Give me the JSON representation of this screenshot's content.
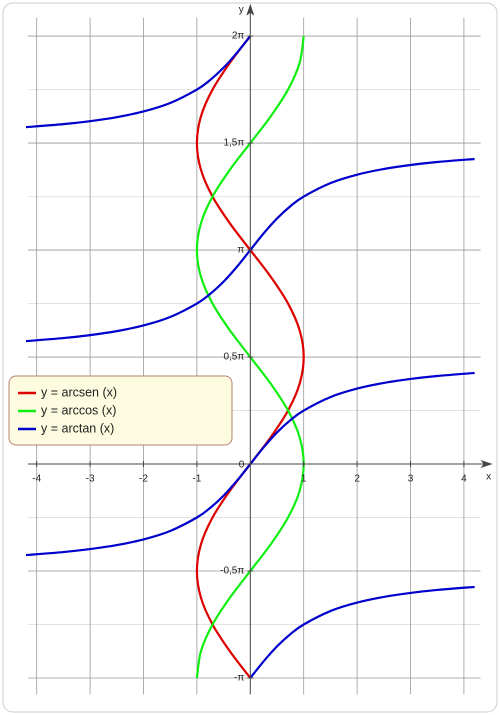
{
  "chart_data": {
    "type": "line",
    "x_label": "x",
    "y_label": "y",
    "xlim": [
      -4.35,
      4.5
    ],
    "ylim": [
      -3.5,
      6.7
    ],
    "xticks": [
      -4,
      -3,
      -2,
      -1,
      1,
      2,
      3,
      4
    ],
    "yticks": [
      {
        "value": -3.1416,
        "label": "-π"
      },
      {
        "value": -1.5708,
        "label": "-0,5π"
      },
      0,
      {
        "value": 1.5708,
        "label": "0,5π"
      },
      {
        "value": 3.1416,
        "label": "π"
      },
      {
        "value": 4.7124,
        "label": "1,5π"
      },
      {
        "value": 6.2832,
        "label": "2π"
      }
    ],
    "y_minor_ticks": [
      -2.3562,
      -0.7854,
      0.7854,
      2.3562,
      3.927,
      5.4978
    ],
    "grid": true,
    "legend": "left",
    "series": [
      {
        "name": "y = arcsen (x)",
        "color": "#dd0000",
        "x": [
          0,
          -0.3827,
          -0.7071,
          -0.9239,
          -1,
          -0.9239,
          -0.7071,
          -0.3827,
          0,
          0.3827,
          0.7071,
          0.9239,
          1,
          0.9239,
          0.7071,
          0.3827,
          0,
          -0.3827,
          -0.7071,
          -0.9239,
          -1,
          -0.9239,
          -0.7071,
          -0.3827,
          0
        ],
        "values": [
          -3.1416,
          -2.7489,
          -2.3562,
          -1.9635,
          -1.5708,
          -1.1781,
          -0.7854,
          -0.3927,
          0,
          0.3927,
          0.7854,
          1.1781,
          1.5708,
          1.9635,
          2.3562,
          2.7489,
          3.1416,
          3.5343,
          3.927,
          4.3197,
          4.7124,
          5.1051,
          5.4978,
          5.8905,
          6.2832
        ]
      },
      {
        "name": "y = arccos (x)",
        "color": "#11ee11",
        "x": [
          -1,
          -0.9239,
          -0.7071,
          -0.3827,
          0,
          0.3827,
          0.7071,
          0.9239,
          1,
          0.9239,
          0.7071,
          0.3827,
          0,
          -0.3827,
          -0.7071,
          -0.9239,
          -1,
          -0.9239,
          -0.7071,
          -0.3827,
          0,
          0.3827,
          0.7071,
          0.9239,
          1
        ],
        "values": [
          -3.1416,
          -2.7489,
          -2.3562,
          -1.9635,
          -1.5708,
          -1.1781,
          -0.7854,
          -0.3927,
          0,
          0.3927,
          0.7854,
          1.1781,
          1.5708,
          1.9635,
          2.3562,
          2.7489,
          3.1416,
          3.5343,
          3.927,
          4.3197,
          4.7124,
          5.1051,
          5.4978,
          5.8905,
          6.2832
        ]
      },
      {
        "name": "y = arctan (x)",
        "color": "#0000cc",
        "x": [
          -4.2,
          -3.5,
          -3,
          -2.5,
          -2,
          -1.5,
          -1,
          -0.75,
          -0.5,
          -0.25,
          0,
          null,
          -4.2,
          -3.5,
          -3,
          -2.5,
          -2,
          -1.5,
          -1,
          -0.75,
          -0.5,
          -0.25,
          0,
          0.25,
          0.5,
          0.75,
          1,
          1.5,
          2,
          2.5,
          3,
          3.5,
          4.2,
          null,
          -4.2,
          -3.5,
          -3,
          -2.5,
          -2,
          -1.5,
          -1,
          -0.75,
          -0.5,
          -0.25,
          0,
          0.25,
          0.5,
          0.75,
          1,
          1.5,
          2,
          2.5,
          3,
          3.5,
          4.2,
          null,
          0,
          0.25,
          0.5,
          0.75,
          1,
          1.5,
          2,
          2.5,
          3,
          3.5,
          4.2
        ],
        "values": [
          4.9461,
          4.9907,
          5.0342,
          5.0929,
          5.1761,
          5.3004,
          5.4978,
          5.6397,
          5.8196,
          6.0382,
          6.2832,
          null,
          1.8045,
          1.8491,
          1.8926,
          1.9513,
          2.0345,
          2.1588,
          2.3562,
          2.4981,
          2.678,
          2.8966,
          3.1416,
          3.3866,
          3.6052,
          3.7851,
          3.927,
          4.1244,
          4.2487,
          4.3319,
          4.3906,
          4.4341,
          4.4787,
          null,
          -1.3371,
          -1.2925,
          -1.249,
          -1.1903,
          -1.1071,
          -0.9828,
          -0.7854,
          -0.6435,
          -0.4636,
          -0.245,
          0,
          0.245,
          0.4636,
          0.6435,
          0.7854,
          0.9828,
          1.1071,
          1.1903,
          1.249,
          1.2925,
          1.3371,
          null,
          -3.1416,
          -2.8966,
          -2.678,
          -2.4981,
          -2.3562,
          -2.1588,
          -2.0345,
          -1.9513,
          -1.8926,
          -1.8491,
          -1.8045
        ]
      }
    ]
  }
}
